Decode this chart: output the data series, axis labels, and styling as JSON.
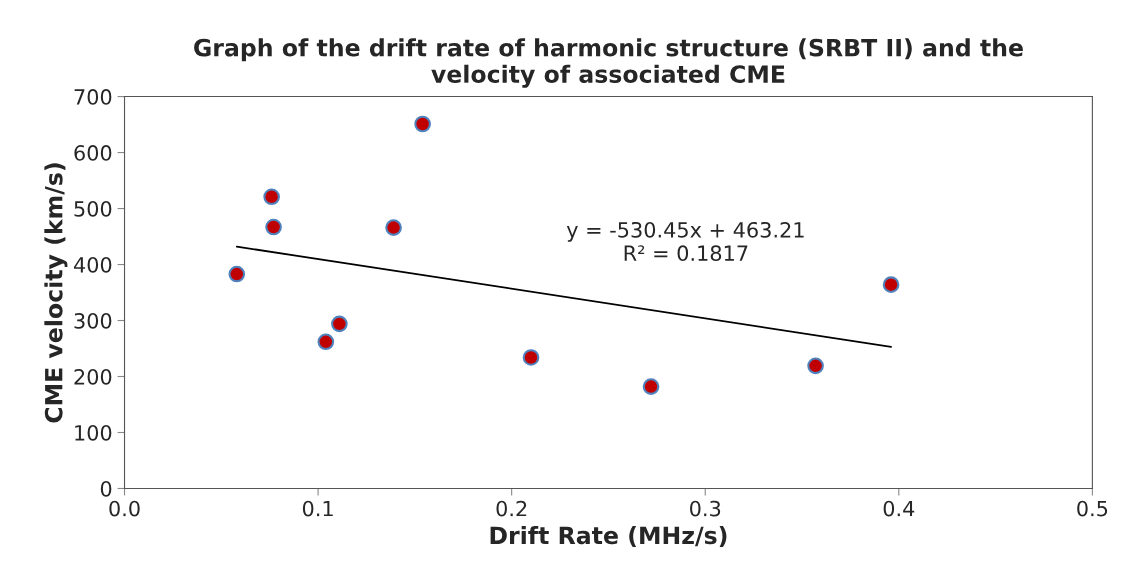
{
  "chart_data": {
    "type": "scatter",
    "title": "Graph of the drift rate of harmonic structure (SRBT II) and the\nvelocity of associated CME",
    "xlabel": "Drift Rate (MHz/s)",
    "ylabel": "CME velocity (km/s)",
    "series": [
      {
        "color": "#c00000",
        "marker": "circle",
        "x": [
          0.058,
          0.076,
          0.077,
          0.154,
          0.139,
          0.111,
          0.104,
          0.21,
          0.272,
          0.357,
          0.396
        ],
        "values": [
          383,
          521,
          467,
          651,
          466,
          294,
          262,
          234,
          182,
          219,
          364
        ]
      },
      {
        "type": "line",
        "color": "#000000",
        "marker": "none",
        "line_style": "solid",
        "x": [
          0.058,
          0.396
        ],
        "values": [
          432,
          253
        ]
      }
    ],
    "annotations": [
      "y = -530.45x + 463.21\nR² = 0.1817"
    ],
    "xlim": [
      0.0,
      0.5
    ],
    "xticks": [
      {
        "value": 0.0,
        "label": "0.0"
      },
      0.1,
      0.2,
      0.3,
      0.4,
      0.5
    ],
    "ylim": [
      0,
      700
    ],
    "yticks": [
      0,
      100,
      200,
      300,
      400,
      500,
      600,
      700
    ],
    "grid": false,
    "legend": false
  }
}
